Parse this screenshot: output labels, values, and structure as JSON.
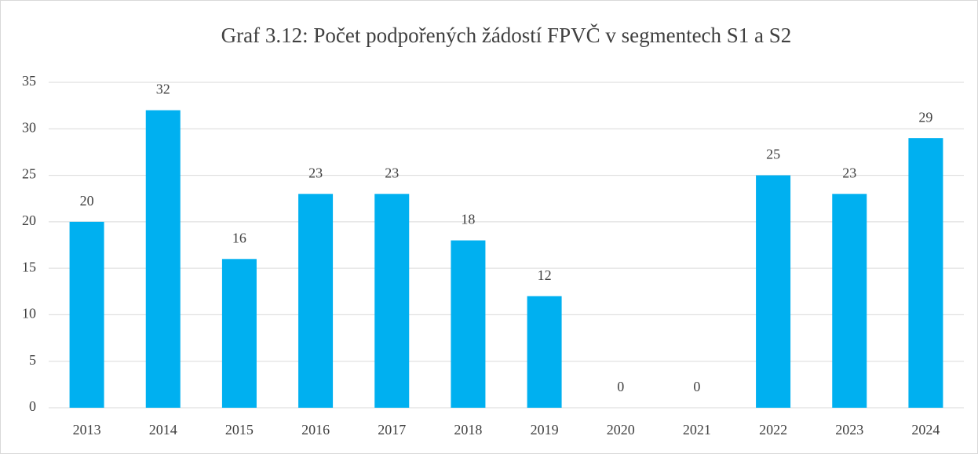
{
  "chart_data": {
    "type": "bar",
    "title": "Graf 3.12: Počet podpořených žádostí FPVČ v segmentech S1 a S2",
    "categories": [
      "2013",
      "2014",
      "2015",
      "2016",
      "2017",
      "2018",
      "2019",
      "2020",
      "2021",
      "2022",
      "2023",
      "2024"
    ],
    "values": [
      20,
      32,
      16,
      23,
      23,
      18,
      12,
      0,
      0,
      25,
      23,
      29
    ],
    "color": "#00b0f0",
    "ylim": [
      0,
      35
    ],
    "yticks": [
      0,
      5,
      10,
      15,
      20,
      25,
      30,
      35
    ],
    "grid": true
  }
}
